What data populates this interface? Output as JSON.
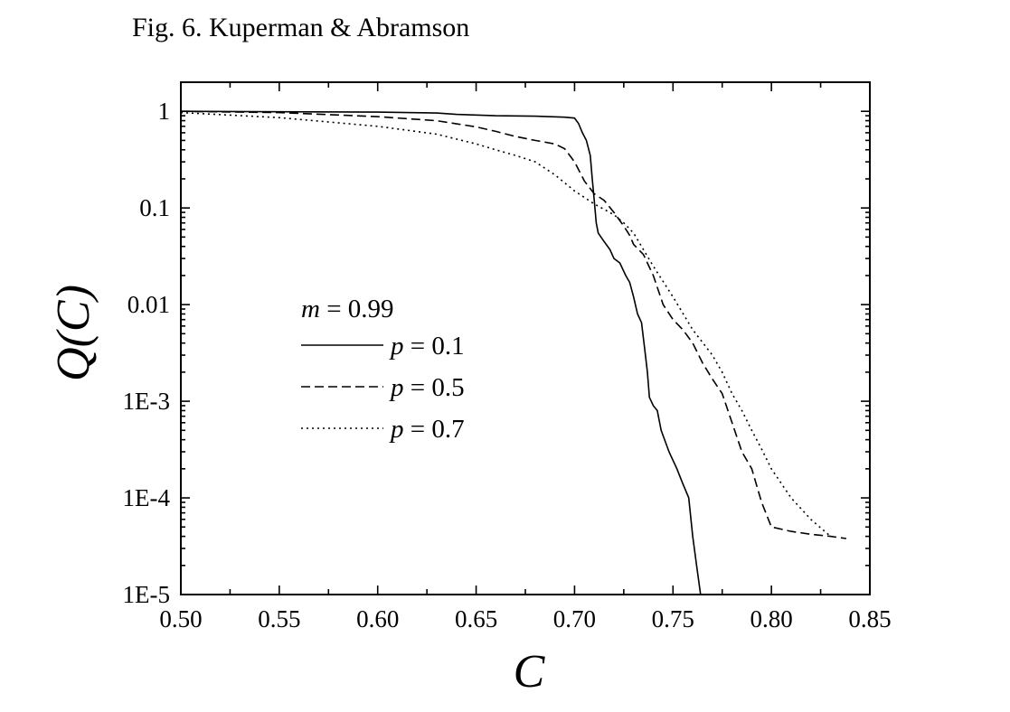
{
  "caption": "Fig. 6. Kuperman & Abramson",
  "chart_data": {
    "type": "line",
    "title": "",
    "xlabel": "C",
    "ylabel": "Q(C)",
    "xlim": [
      0.5,
      0.85
    ],
    "ylim": [
      1e-05,
      2
    ],
    "yscale": "log",
    "grid": false,
    "x_ticks": [
      0.5,
      0.55,
      0.6,
      0.65,
      0.7,
      0.75,
      0.8,
      0.85
    ],
    "x_tick_labels": [
      "0.50",
      "0.55",
      "0.60",
      "0.65",
      "0.70",
      "0.75",
      "0.80",
      "0.85"
    ],
    "y_ticks": [
      1e-05,
      0.0001,
      0.001,
      0.01,
      0.1,
      1
    ],
    "y_tick_labels": [
      "1E-5",
      "1E-4",
      "1E-3",
      "0.01",
      "0.1",
      "1"
    ],
    "legend": {
      "placement": "center-left",
      "header_var": "m",
      "header_rest": " = 0.99"
    },
    "series": [
      {
        "name": "p = 0.1",
        "name_var": "p",
        "name_rest": " = 0.1",
        "dash": "solid",
        "points": [
          [
            0.5,
            1.0
          ],
          [
            0.55,
            0.99
          ],
          [
            0.6,
            0.98
          ],
          [
            0.63,
            0.96
          ],
          [
            0.64,
            0.93
          ],
          [
            0.66,
            0.9
          ],
          [
            0.68,
            0.89
          ],
          [
            0.695,
            0.87
          ],
          [
            0.7,
            0.85
          ],
          [
            0.702,
            0.75
          ],
          [
            0.704,
            0.6
          ],
          [
            0.706,
            0.5
          ],
          [
            0.708,
            0.35
          ],
          [
            0.709,
            0.2
          ],
          [
            0.71,
            0.12
          ],
          [
            0.711,
            0.07
          ],
          [
            0.712,
            0.055
          ],
          [
            0.715,
            0.045
          ],
          [
            0.718,
            0.037
          ],
          [
            0.72,
            0.03
          ],
          [
            0.723,
            0.027
          ],
          [
            0.726,
            0.02
          ],
          [
            0.728,
            0.017
          ],
          [
            0.73,
            0.012
          ],
          [
            0.732,
            0.008
          ],
          [
            0.734,
            0.0065
          ],
          [
            0.736,
            0.003
          ],
          [
            0.737,
            0.002
          ],
          [
            0.738,
            0.0011
          ],
          [
            0.74,
            0.0009
          ],
          [
            0.742,
            0.0008
          ],
          [
            0.744,
            0.0005
          ],
          [
            0.748,
            0.0003
          ],
          [
            0.752,
            0.0002
          ],
          [
            0.755,
            0.00014
          ],
          [
            0.758,
            0.0001
          ],
          [
            0.76,
            4e-05
          ],
          [
            0.762,
            2e-05
          ],
          [
            0.764,
            1e-05
          ]
        ]
      },
      {
        "name": "p = 0.5",
        "name_var": "p",
        "name_rest": " = 0.5",
        "dash": "dashed",
        "points": [
          [
            0.5,
            1.0
          ],
          [
            0.55,
            0.97
          ],
          [
            0.6,
            0.88
          ],
          [
            0.63,
            0.8
          ],
          [
            0.65,
            0.69
          ],
          [
            0.66,
            0.62
          ],
          [
            0.67,
            0.55
          ],
          [
            0.68,
            0.5
          ],
          [
            0.69,
            0.46
          ],
          [
            0.695,
            0.41
          ],
          [
            0.7,
            0.3
          ],
          [
            0.705,
            0.19
          ],
          [
            0.71,
            0.14
          ],
          [
            0.715,
            0.12
          ],
          [
            0.72,
            0.09
          ],
          [
            0.725,
            0.065
          ],
          [
            0.728,
            0.052
          ],
          [
            0.73,
            0.042
          ],
          [
            0.735,
            0.033
          ],
          [
            0.74,
            0.02
          ],
          [
            0.745,
            0.01
          ],
          [
            0.75,
            0.007
          ],
          [
            0.755,
            0.0055
          ],
          [
            0.76,
            0.004
          ],
          [
            0.765,
            0.0025
          ],
          [
            0.77,
            0.0017
          ],
          [
            0.775,
            0.0012
          ],
          [
            0.78,
            0.0006
          ],
          [
            0.785,
            0.0003
          ],
          [
            0.79,
            0.0002
          ],
          [
            0.795,
            9e-05
          ],
          [
            0.8,
            5e-05
          ],
          [
            0.81,
            4.5e-05
          ],
          [
            0.82,
            4.2e-05
          ],
          [
            0.83,
            4e-05
          ],
          [
            0.838,
            3.8e-05
          ]
        ]
      },
      {
        "name": "p = 0.7",
        "name_var": "p",
        "name_rest": " = 0.7",
        "dash": "dotted",
        "points": [
          [
            0.5,
            0.97
          ],
          [
            0.55,
            0.86
          ],
          [
            0.6,
            0.7
          ],
          [
            0.63,
            0.58
          ],
          [
            0.65,
            0.46
          ],
          [
            0.66,
            0.4
          ],
          [
            0.67,
            0.35
          ],
          [
            0.68,
            0.3
          ],
          [
            0.69,
            0.22
          ],
          [
            0.7,
            0.15
          ],
          [
            0.71,
            0.11
          ],
          [
            0.72,
            0.085
          ],
          [
            0.725,
            0.07
          ],
          [
            0.73,
            0.055
          ],
          [
            0.74,
            0.025
          ],
          [
            0.75,
            0.012
          ],
          [
            0.76,
            0.0055
          ],
          [
            0.77,
            0.003
          ],
          [
            0.775,
            0.002
          ],
          [
            0.78,
            0.0012
          ],
          [
            0.785,
            0.0008
          ],
          [
            0.79,
            0.0005
          ],
          [
            0.795,
            0.00032
          ],
          [
            0.8,
            0.0002
          ],
          [
            0.81,
            0.0001
          ],
          [
            0.82,
            6e-05
          ],
          [
            0.83,
            4e-05
          ]
        ]
      }
    ]
  }
}
